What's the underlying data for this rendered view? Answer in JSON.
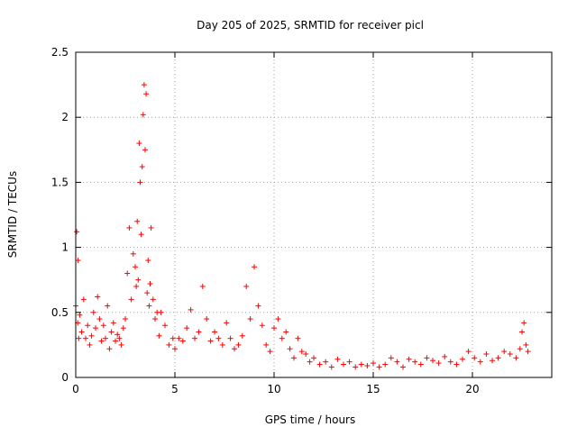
{
  "chart_data": {
    "type": "scatter",
    "title": "Day 205 of 2025, SRMTID for receiver picl",
    "xlabel": "GPS time / hours",
    "ylabel": "SRMTID / TECUs",
    "xlim": [
      0,
      24
    ],
    "ylim": [
      0,
      2.5
    ],
    "x_ticks": [
      0,
      5,
      10,
      15,
      20
    ],
    "x_tick_labels": [
      "0",
      "5",
      "10",
      "15",
      "20"
    ],
    "y_ticks": [
      0,
      0.5,
      1,
      1.5,
      2,
      2.5
    ],
    "y_tick_labels": [
      "0",
      "0.5",
      "1",
      "1.5",
      "2",
      "2.5"
    ],
    "grid": true,
    "marker": "+",
    "series_color": "#ff0000",
    "series": [
      {
        "name": "SRMTID",
        "x": [
          0.0,
          0.05,
          0.1,
          0.12,
          0.15,
          0.2,
          0.3,
          0.4,
          0.5,
          0.6,
          0.7,
          0.8,
          0.9,
          1.0,
          1.1,
          1.2,
          1.3,
          1.4,
          1.5,
          1.6,
          1.7,
          1.8,
          1.9,
          2.0,
          2.1,
          2.2,
          2.3,
          2.4,
          2.5,
          2.6,
          2.7,
          2.8,
          2.9,
          3.0,
          3.05,
          3.1,
          3.15,
          3.2,
          3.25,
          3.3,
          3.35,
          3.4,
          3.45,
          3.5,
          3.55,
          3.6,
          3.65,
          3.7,
          3.75,
          3.8,
          3.9,
          4.0,
          4.1,
          4.2,
          4.3,
          4.5,
          4.7,
          4.9,
          5.0,
          5.2,
          5.4,
          5.6,
          5.8,
          6.0,
          6.2,
          6.4,
          6.6,
          6.8,
          7.0,
          7.2,
          7.4,
          7.6,
          7.8,
          8.0,
          8.2,
          8.4,
          8.6,
          8.8,
          9.0,
          9.2,
          9.4,
          9.6,
          9.8,
          10.0,
          10.2,
          10.4,
          10.6,
          10.8,
          11.0,
          11.2,
          11.4,
          11.6,
          11.8,
          12.0,
          12.3,
          12.6,
          12.9,
          13.2,
          13.5,
          13.8,
          14.1,
          14.4,
          14.7,
          15.0,
          15.3,
          15.6,
          15.9,
          16.2,
          16.5,
          16.8,
          17.1,
          17.4,
          17.7,
          18.0,
          18.3,
          18.6,
          18.9,
          19.2,
          19.5,
          19.8,
          20.1,
          20.4,
          20.7,
          21.0,
          21.3,
          21.6,
          21.9,
          22.2,
          22.4,
          22.5,
          22.6,
          22.7,
          22.8
        ],
        "y": [
          0.55,
          1.12,
          0.42,
          0.9,
          0.3,
          0.48,
          0.35,
          0.6,
          0.3,
          0.4,
          0.25,
          0.32,
          0.5,
          0.38,
          0.62,
          0.45,
          0.28,
          0.4,
          0.3,
          0.55,
          0.22,
          0.35,
          0.42,
          0.28,
          0.33,
          0.3,
          0.25,
          0.38,
          0.45,
          0.8,
          1.15,
          0.6,
          0.95,
          0.85,
          0.7,
          1.2,
          0.75,
          1.8,
          1.5,
          1.1,
          1.62,
          2.02,
          2.25,
          1.75,
          2.18,
          0.65,
          0.9,
          0.55,
          0.72,
          1.15,
          0.6,
          0.45,
          0.5,
          0.32,
          0.5,
          0.4,
          0.25,
          0.3,
          0.22,
          0.3,
          0.28,
          0.38,
          0.52,
          0.3,
          0.35,
          0.7,
          0.45,
          0.28,
          0.35,
          0.3,
          0.25,
          0.42,
          0.3,
          0.22,
          0.25,
          0.32,
          0.7,
          0.45,
          0.85,
          0.55,
          0.4,
          0.25,
          0.2,
          0.38,
          0.45,
          0.3,
          0.35,
          0.22,
          0.15,
          0.3,
          0.2,
          0.18,
          0.12,
          0.15,
          0.1,
          0.12,
          0.08,
          0.14,
          0.1,
          0.12,
          0.08,
          0.1,
          0.09,
          0.11,
          0.08,
          0.1,
          0.15,
          0.12,
          0.08,
          0.14,
          0.12,
          0.1,
          0.15,
          0.13,
          0.11,
          0.16,
          0.12,
          0.1,
          0.14,
          0.2,
          0.15,
          0.12,
          0.18,
          0.13,
          0.15,
          0.2,
          0.18,
          0.15,
          0.22,
          0.35,
          0.42,
          0.25,
          0.2
        ]
      }
    ]
  }
}
